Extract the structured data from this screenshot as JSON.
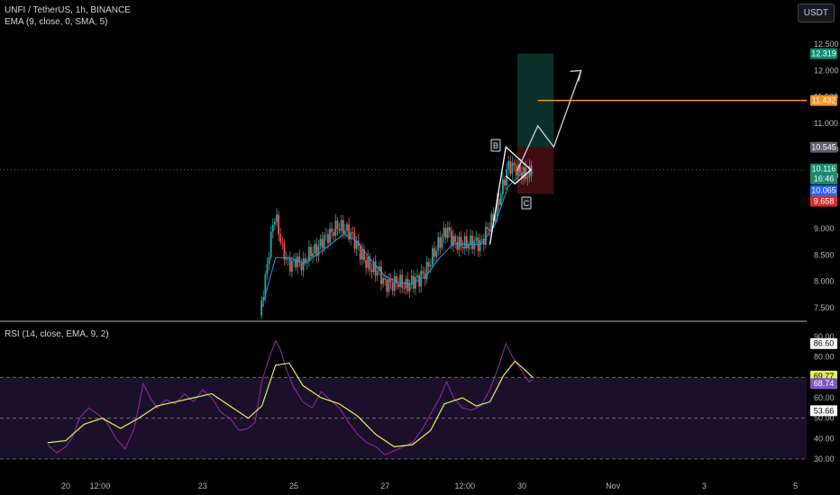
{
  "header": {
    "symbol": "UNFI / TetherUS, 1h, BINANCE",
    "ema_indicator": "EMA (9, close, 0, SMA, 5)",
    "rsi_indicator": "RSI (14, close, EMA, 9, 2)",
    "currency_button": "USDT"
  },
  "annotations": {
    "point_b": "B",
    "point_c": "C"
  },
  "price_tags": [
    {
      "text": "12.319",
      "color": "#0e8c76"
    },
    {
      "text": "11.432",
      "color": "#f7941d"
    },
    {
      "text": "10.545",
      "color": "#5d606b"
    },
    {
      "text": "10.116",
      "color": "#1b8a70"
    },
    {
      "text": "16:46",
      "color": "#1b8a70"
    },
    {
      "text": "10.065",
      "color": "#2962ff"
    },
    {
      "text": "9.658",
      "color": "#d32f2f"
    }
  ],
  "rsi_tags": [
    {
      "text": "86.60",
      "color": "#ffffff",
      "fg": "#000000"
    },
    {
      "text": "69.77",
      "color": "#e6ee5a",
      "fg": "#000000"
    },
    {
      "text": "68.74",
      "color": "#7e57c2",
      "fg": "#ffffff"
    },
    {
      "text": "53.66",
      "color": "#ffffff",
      "fg": "#000000"
    }
  ],
  "chart_data": [
    {
      "type": "candlestick",
      "title": "UNFI / TetherUS, 1h, BINANCE",
      "ylim": [
        7.3,
        12.6
      ],
      "y_ticks": [
        "12.500",
        "12.000",
        "11.500",
        "11.000",
        "10.500",
        "10.000",
        "9.500",
        "9.000",
        "8.500",
        "8.000",
        "7.500"
      ],
      "x_ticks": [
        "20",
        "12:00",
        "23",
        "25",
        "27",
        "12:00",
        "30",
        "Nov",
        "3",
        "5"
      ],
      "price_path": [
        [
          24.25,
          7.35
        ],
        [
          24.4,
          8.2
        ],
        [
          24.55,
          9.15
        ],
        [
          24.6,
          9.25
        ],
        [
          24.75,
          8.6
        ],
        [
          24.9,
          8.3
        ],
        [
          25.05,
          8.4
        ],
        [
          25.2,
          8.3
        ],
        [
          25.35,
          8.55
        ],
        [
          25.5,
          8.6
        ],
        [
          25.65,
          8.8
        ],
        [
          25.8,
          8.9
        ],
        [
          25.95,
          9.05
        ],
        [
          26.1,
          9.0
        ],
        [
          26.25,
          8.9
        ],
        [
          26.4,
          8.65
        ],
        [
          26.55,
          8.4
        ],
        [
          26.7,
          8.25
        ],
        [
          26.85,
          8.2
        ],
        [
          27.0,
          7.95
        ],
        [
          27.15,
          7.95
        ],
        [
          27.3,
          8.0
        ],
        [
          27.45,
          7.9
        ],
        [
          27.6,
          8.0
        ],
        [
          27.75,
          8.05
        ],
        [
          27.9,
          8.2
        ],
        [
          28.05,
          8.5
        ],
        [
          28.2,
          8.75
        ],
        [
          28.35,
          9.0
        ],
        [
          28.5,
          8.75
        ],
        [
          28.65,
          8.7
        ],
        [
          28.8,
          8.72
        ],
        [
          28.95,
          8.75
        ],
        [
          29.1,
          8.7
        ],
        [
          29.25,
          9.0
        ],
        [
          29.4,
          9.25
        ],
        [
          29.55,
          9.7
        ],
        [
          29.7,
          10.2
        ],
        [
          29.85,
          10.15
        ],
        [
          30.0,
          10.05
        ],
        [
          30.1,
          10.0
        ],
        [
          30.2,
          10.1
        ],
        [
          30.25,
          10.116
        ]
      ],
      "ema_path": [
        [
          24.3,
          7.5
        ],
        [
          24.6,
          8.45
        ],
        [
          24.9,
          8.45
        ],
        [
          25.2,
          8.35
        ],
        [
          25.5,
          8.5
        ],
        [
          25.8,
          8.7
        ],
        [
          26.1,
          8.9
        ],
        [
          26.4,
          8.75
        ],
        [
          26.7,
          8.4
        ],
        [
          27.0,
          8.1
        ],
        [
          27.3,
          7.98
        ],
        [
          27.6,
          7.95
        ],
        [
          27.9,
          8.1
        ],
        [
          28.2,
          8.45
        ],
        [
          28.5,
          8.72
        ],
        [
          28.8,
          8.7
        ],
        [
          29.1,
          8.7
        ],
        [
          29.4,
          9.05
        ],
        [
          29.7,
          9.8
        ],
        [
          30.0,
          10.05
        ],
        [
          30.25,
          10.065
        ]
      ],
      "pattern_points": [
        [
          29.3,
          8.7
        ],
        [
          29.65,
          10.55
        ],
        [
          30.2,
          10.116
        ],
        [
          29.65,
          10.0
        ],
        [
          29.85,
          9.85
        ]
      ],
      "projection_path": [
        [
          29.9,
          10.1
        ],
        [
          30.35,
          10.95
        ],
        [
          30.7,
          10.55
        ],
        [
          31.3,
          12.0
        ]
      ],
      "long_position": {
        "x_from": 29.9,
        "x_to": 30.7,
        "entry": 10.545,
        "target": 12.319,
        "stop": 9.658
      },
      "horizontal_level": {
        "x_from": 30.35,
        "value": 11.432
      }
    },
    {
      "type": "line",
      "title": "RSI (14, close, EMA, 9, 2)",
      "ylim": [
        29,
        90
      ],
      "y_ticks": [
        "90.00",
        "80.00",
        "70.00",
        "60.00",
        "50.00",
        "40.00",
        "30.00"
      ],
      "bands": [
        70,
        50,
        30
      ],
      "series": [
        {
          "color": "#9c27b0",
          "values": [
            [
              19.6,
              37
            ],
            [
              19.8,
              33
            ],
            [
              20.0,
              36
            ],
            [
              20.15,
              41
            ],
            [
              20.3,
              50
            ],
            [
              20.5,
              55
            ],
            [
              20.7,
              52
            ],
            [
              20.9,
              48
            ],
            [
              21.1,
              40
            ],
            [
              21.3,
              35
            ],
            [
              21.5,
              45
            ],
            [
              21.7,
              67
            ],
            [
              21.85,
              60
            ],
            [
              22.0,
              55
            ],
            [
              22.2,
              59
            ],
            [
              22.4,
              57
            ],
            [
              22.6,
              62
            ],
            [
              22.8,
              58
            ],
            [
              23.0,
              64
            ],
            [
              23.2,
              60
            ],
            [
              23.4,
              53
            ],
            [
              23.6,
              50
            ],
            [
              23.8,
              44
            ],
            [
              24.0,
              45
            ],
            [
              24.15,
              48
            ],
            [
              24.3,
              68
            ],
            [
              24.45,
              79
            ],
            [
              24.6,
              88
            ],
            [
              24.7,
              84
            ],
            [
              24.85,
              73
            ],
            [
              25.0,
              65
            ],
            [
              25.2,
              58
            ],
            [
              25.4,
              55
            ],
            [
              25.6,
              63
            ],
            [
              25.8,
              59
            ],
            [
              26.0,
              55
            ],
            [
              26.2,
              48
            ],
            [
              26.4,
              42
            ],
            [
              26.6,
              38
            ],
            [
              26.8,
              36
            ],
            [
              27.0,
              32
            ],
            [
              27.2,
              34
            ],
            [
              27.4,
              36
            ],
            [
              27.6,
              38
            ],
            [
              27.8,
              44
            ],
            [
              28.0,
              52
            ],
            [
              28.2,
              60
            ],
            [
              28.35,
              68
            ],
            [
              28.5,
              60
            ],
            [
              28.7,
              55
            ],
            [
              28.9,
              54
            ],
            [
              29.1,
              56
            ],
            [
              29.3,
              64
            ],
            [
              29.5,
              76
            ],
            [
              29.65,
              86.6
            ],
            [
              29.8,
              80
            ],
            [
              30.0,
              73
            ],
            [
              30.15,
              68
            ],
            [
              30.25,
              68.74
            ]
          ]
        },
        {
          "color": "#e6ee5a",
          "values": [
            [
              19.6,
              38
            ],
            [
              20.0,
              39
            ],
            [
              20.4,
              47
            ],
            [
              20.8,
              50
            ],
            [
              21.2,
              45
            ],
            [
              21.6,
              50
            ],
            [
              22.0,
              56
            ],
            [
              22.4,
              58
            ],
            [
              22.8,
              60
            ],
            [
              23.2,
              62
            ],
            [
              23.6,
              56
            ],
            [
              24.0,
              50
            ],
            [
              24.3,
              56
            ],
            [
              24.6,
              76
            ],
            [
              24.9,
              77
            ],
            [
              25.2,
              66
            ],
            [
              25.6,
              60
            ],
            [
              26.0,
              57
            ],
            [
              26.4,
              51
            ],
            [
              26.8,
              42
            ],
            [
              27.2,
              36
            ],
            [
              27.6,
              37
            ],
            [
              28.0,
              44
            ],
            [
              28.3,
              57
            ],
            [
              28.7,
              60
            ],
            [
              29.0,
              56
            ],
            [
              29.3,
              58
            ],
            [
              29.6,
              71
            ],
            [
              29.85,
              78
            ],
            [
              30.1,
              73
            ],
            [
              30.25,
              69.77
            ]
          ]
        }
      ]
    }
  ]
}
